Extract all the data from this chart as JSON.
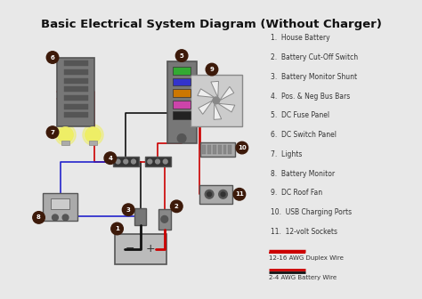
{
  "title": "Basic Electrical System Diagram (Without Charger)",
  "bg_color": "#e8e8e8",
  "legend_items": [
    "House Battery",
    "Battery Cut-Off Switch",
    "Battery Monitor Shunt",
    "Pos. & Neg Bus Bars",
    "DC Fuse Panel",
    "DC Switch Panel",
    "Lights",
    "Battery Monitor",
    "DC Roof Fan",
    "USB Charging Ports",
    "12-volt Sockets"
  ],
  "wire_legend": [
    {
      "label": "12-16 AWG Duplex Wire",
      "colors": [
        "#cc0000",
        "#cc0000"
      ]
    },
    {
      "label": "2-4 AWG Battery Wire",
      "colors": [
        "#cc0000",
        "#111111"
      ]
    }
  ],
  "number_badge_color": "#3d1a0a",
  "number_badge_text_color": "#ffffff",
  "component_colors": {
    "battery": "#aaaaaa",
    "switch_panel": "#888888",
    "fuse_panel": "#888888",
    "bus_bars": "#333333",
    "lights_body": "#aaaaaa",
    "lights_glow": "#eeee66",
    "battery_monitor": "#aaaaaa",
    "fan": "#cccccc",
    "usb_ports": "#aaaaaa",
    "sockets": "#aaaaaa"
  },
  "wire_red": "#cc0000",
  "wire_black": "#111111",
  "wire_blue": "#2222cc",
  "fuse_colors": [
    "#33aa33",
    "#3333cc",
    "#cc7700",
    "#cc44aa",
    "#222222"
  ]
}
